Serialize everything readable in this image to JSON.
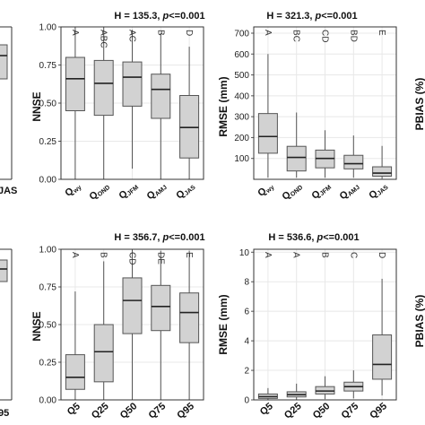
{
  "chart_data": [
    {
      "type": "box",
      "title_prefix": "H = 135.3, ",
      "title_p": "p",
      "title_suffix": "<=0.001",
      "ylabel": "NNSE",
      "ylim": [
        0,
        1
      ],
      "yticks": [
        "0.00",
        "0.25",
        "0.50",
        "0.75",
        "1.00"
      ],
      "ytick_values": [
        0,
        0.25,
        0.5,
        0.75,
        1.0
      ],
      "categories": [
        {
          "main": "Q",
          "sub": "wy"
        },
        {
          "main": "Q",
          "sub": "OND"
        },
        {
          "main": "Q",
          "sub": "JFM"
        },
        {
          "main": "Q",
          "sub": "AMJ"
        },
        {
          "main": "Q",
          "sub": "JAS"
        }
      ],
      "letters": [
        "A",
        "ABC",
        "AC",
        "B",
        "D"
      ],
      "boxes": [
        {
          "min": 0.0,
          "q1": 0.45,
          "median": 0.66,
          "q3": 0.8,
          "max": 1.0
        },
        {
          "min": 0.0,
          "q1": 0.42,
          "median": 0.63,
          "q3": 0.78,
          "max": 1.0
        },
        {
          "min": 0.07,
          "q1": 0.48,
          "median": 0.67,
          "q3": 0.77,
          "max": 0.98
        },
        {
          "min": 0.0,
          "q1": 0.4,
          "median": 0.59,
          "q3": 0.69,
          "max": 0.96
        },
        {
          "min": 0.0,
          "q1": 0.14,
          "median": 0.34,
          "q3": 0.55,
          "max": 0.87
        }
      ]
    },
    {
      "type": "box",
      "title_prefix": "H = 321.3, ",
      "title_p": "p",
      "title_suffix": "<=0.001",
      "ylabel": "RMSE (mm)",
      "ylim": [
        0,
        730
      ],
      "yticks": [
        "100",
        "200",
        "300",
        "400",
        "500",
        "600",
        "700"
      ],
      "ytick_values": [
        100,
        200,
        300,
        400,
        500,
        600,
        700
      ],
      "categories": [
        {
          "main": "Q",
          "sub": "wy"
        },
        {
          "main": "Q",
          "sub": "OND"
        },
        {
          "main": "Q",
          "sub": "JFM"
        },
        {
          "main": "Q",
          "sub": "AMJ"
        },
        {
          "main": "Q",
          "sub": "JAS"
        }
      ],
      "letters": [
        "A",
        "BC",
        "CD",
        "BD",
        "E"
      ],
      "boxes": [
        {
          "min": 8,
          "q1": 125,
          "median": 205,
          "q3": 315,
          "max": 600
        },
        {
          "min": 8,
          "q1": 40,
          "median": 105,
          "q3": 158,
          "max": 320
        },
        {
          "min": 8,
          "q1": 55,
          "median": 100,
          "q3": 140,
          "max": 235
        },
        {
          "min": 8,
          "q1": 50,
          "median": 75,
          "q3": 115,
          "max": 210
        },
        {
          "min": 3,
          "q1": 15,
          "median": 30,
          "q3": 60,
          "max": 160
        }
      ]
    },
    {
      "type": "box",
      "title_prefix": "H = 356.7, ",
      "title_p": "p",
      "title_suffix": "<=0.001",
      "ylabel": "NNSE",
      "ylim": [
        0,
        1
      ],
      "yticks": [
        "0.00",
        "0.25",
        "0.50",
        "0.75",
        "1.00"
      ],
      "ytick_values": [
        0,
        0.25,
        0.5,
        0.75,
        1.0
      ],
      "categories": [
        {
          "main": "Q5",
          "sub": ""
        },
        {
          "main": "Q25",
          "sub": ""
        },
        {
          "main": "Q50",
          "sub": ""
        },
        {
          "main": "Q75",
          "sub": ""
        },
        {
          "main": "Q95",
          "sub": ""
        }
      ],
      "letters": [
        "A",
        "B",
        "CD",
        "DE",
        "E"
      ],
      "boxes": [
        {
          "min": 0.0,
          "q1": 0.07,
          "median": 0.15,
          "q3": 0.3,
          "max": 0.72
        },
        {
          "min": 0.0,
          "q1": 0.12,
          "median": 0.32,
          "q3": 0.5,
          "max": 0.92
        },
        {
          "min": 0.0,
          "q1": 0.44,
          "median": 0.66,
          "q3": 0.81,
          "max": 1.0
        },
        {
          "min": 0.0,
          "q1": 0.46,
          "median": 0.62,
          "q3": 0.76,
          "max": 0.99
        },
        {
          "min": 0.0,
          "q1": 0.38,
          "median": 0.58,
          "q3": 0.71,
          "max": 0.99
        }
      ]
    },
    {
      "type": "box",
      "title_prefix": "H = 536.6, ",
      "title_p": "p",
      "title_suffix": "<=0.001",
      "ylabel": "RMSE (mm)",
      "ylim": [
        0,
        10.2
      ],
      "yticks": [
        "0",
        "2",
        "4",
        "6",
        "8",
        "10"
      ],
      "ytick_values": [
        0,
        2,
        4,
        6,
        8,
        10
      ],
      "categories": [
        {
          "main": "Q5",
          "sub": ""
        },
        {
          "main": "Q25",
          "sub": ""
        },
        {
          "main": "Q50",
          "sub": ""
        },
        {
          "main": "Q75",
          "sub": ""
        },
        {
          "main": "Q95",
          "sub": ""
        }
      ],
      "letters": [
        "A",
        "A",
        "B",
        "C",
        "D"
      ],
      "boxes": [
        {
          "min": 0.0,
          "q1": 0.1,
          "median": 0.22,
          "q3": 0.4,
          "max": 0.8
        },
        {
          "min": 0.0,
          "q1": 0.2,
          "median": 0.35,
          "q3": 0.55,
          "max": 1.1
        },
        {
          "min": 0.05,
          "q1": 0.4,
          "median": 0.6,
          "q3": 0.9,
          "max": 1.6
        },
        {
          "min": 0.1,
          "q1": 0.6,
          "median": 0.9,
          "q3": 1.2,
          "max": 2.0
        },
        {
          "min": 0.3,
          "q1": 1.4,
          "median": 2.4,
          "q3": 4.4,
          "max": 8.2
        }
      ]
    }
  ],
  "right_labels": [
    "PBIAS (%)",
    "PBIAS (%)"
  ]
}
